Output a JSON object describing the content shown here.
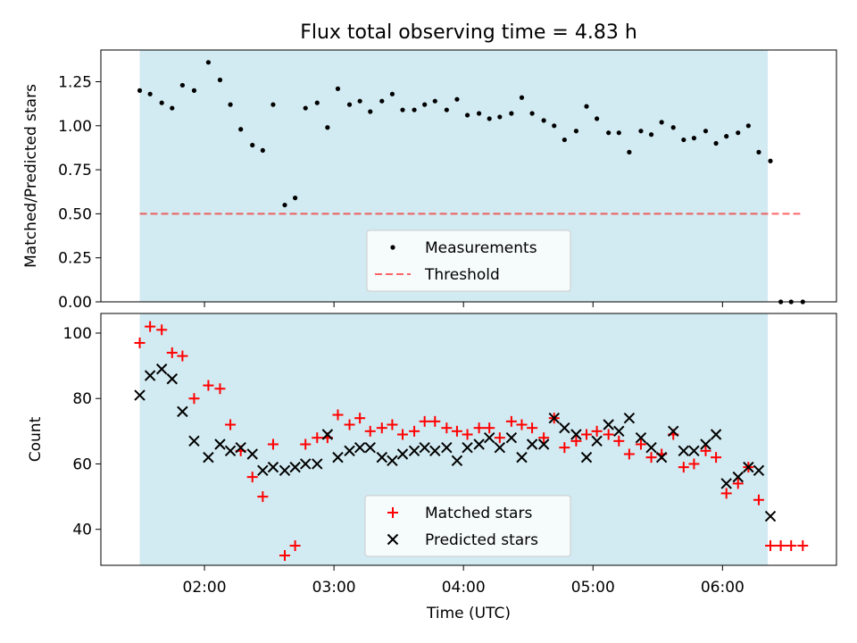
{
  "chart_data": [
    {
      "type": "scatter",
      "title": "Flux total observing time = 4.83 h",
      "ylabel": "Matched/Predicted stars",
      "xlabel": "",
      "ylim": [
        0,
        1.43
      ],
      "xlim_hours": [
        1.2,
        6.88
      ],
      "shaded_span_hours": [
        1.5,
        6.35
      ],
      "shade_color": "#add8e6",
      "yticks": [
        0.0,
        0.25,
        0.5,
        0.75,
        1.0,
        1.25
      ],
      "ytick_labels": [
        "0.00",
        "0.25",
        "0.50",
        "0.75",
        "1.00",
        "1.25"
      ],
      "threshold": {
        "value": 0.5,
        "x_range_hours": [
          1.5,
          6.6
        ],
        "color": "#ff0000"
      },
      "legend": {
        "placement": "lower center",
        "entries": [
          "Measurements",
          "Threshold"
        ]
      },
      "series": [
        {
          "name": "Measurements",
          "marker": "dot",
          "color": "#000000",
          "points": [
            [
              1.5,
              1.2
            ],
            [
              1.58,
              1.18
            ],
            [
              1.67,
              1.13
            ],
            [
              1.75,
              1.1
            ],
            [
              1.83,
              1.23
            ],
            [
              1.92,
              1.2
            ],
            [
              2.03,
              1.36
            ],
            [
              2.12,
              1.26
            ],
            [
              2.2,
              1.12
            ],
            [
              2.28,
              0.98
            ],
            [
              2.37,
              0.89
            ],
            [
              2.45,
              0.86
            ],
            [
              2.53,
              1.12
            ],
            [
              2.62,
              0.55
            ],
            [
              2.7,
              0.59
            ],
            [
              2.78,
              1.1
            ],
            [
              2.87,
              1.13
            ],
            [
              2.95,
              0.99
            ],
            [
              3.03,
              1.21
            ],
            [
              3.12,
              1.12
            ],
            [
              3.2,
              1.14
            ],
            [
              3.28,
              1.08
            ],
            [
              3.37,
              1.14
            ],
            [
              3.45,
              1.18
            ],
            [
              3.53,
              1.09
            ],
            [
              3.62,
              1.09
            ],
            [
              3.7,
              1.12
            ],
            [
              3.78,
              1.14
            ],
            [
              3.87,
              1.09
            ],
            [
              3.95,
              1.15
            ],
            [
              4.03,
              1.06
            ],
            [
              4.12,
              1.07
            ],
            [
              4.2,
              1.04
            ],
            [
              4.28,
              1.05
            ],
            [
              4.37,
              1.07
            ],
            [
              4.45,
              1.16
            ],
            [
              4.53,
              1.07
            ],
            [
              4.62,
              1.03
            ],
            [
              4.7,
              1.0
            ],
            [
              4.78,
              0.92
            ],
            [
              4.87,
              0.97
            ],
            [
              4.95,
              1.11
            ],
            [
              5.03,
              1.04
            ],
            [
              5.12,
              0.96
            ],
            [
              5.2,
              0.96
            ],
            [
              5.28,
              0.85
            ],
            [
              5.37,
              0.97
            ],
            [
              5.45,
              0.95
            ],
            [
              5.53,
              1.02
            ],
            [
              5.62,
              0.99
            ],
            [
              5.7,
              0.92
            ],
            [
              5.78,
              0.93
            ],
            [
              5.87,
              0.97
            ],
            [
              5.95,
              0.9
            ],
            [
              6.03,
              0.94
            ],
            [
              6.12,
              0.96
            ],
            [
              6.2,
              1.0
            ],
            [
              6.28,
              0.85
            ],
            [
              6.37,
              0.8
            ],
            [
              6.45,
              0.0
            ],
            [
              6.53,
              0.0
            ],
            [
              6.62,
              0.0
            ]
          ]
        }
      ]
    },
    {
      "type": "scatter",
      "title": "",
      "xlabel": "Time (UTC)",
      "ylabel": "Count",
      "ylim": [
        29,
        106
      ],
      "xlim_hours": [
        1.2,
        6.88
      ],
      "shaded_span_hours": [
        1.5,
        6.35
      ],
      "shade_color": "#add8e6",
      "yticks": [
        40,
        60,
        80,
        100
      ],
      "ytick_labels": [
        "40",
        "60",
        "80",
        "100"
      ],
      "xticks_hours": [
        2,
        3,
        4,
        5,
        6
      ],
      "xtick_labels": [
        "02:00",
        "03:00",
        "04:00",
        "05:00",
        "06:00"
      ],
      "legend": {
        "placement": "lower center",
        "entries": [
          "Matched stars",
          "Predicted stars"
        ]
      },
      "series": [
        {
          "name": "Matched stars",
          "marker": "plus",
          "color": "#ff0000",
          "points": [
            [
              1.5,
              97
            ],
            [
              1.58,
              102
            ],
            [
              1.67,
              101
            ],
            [
              1.75,
              94
            ],
            [
              1.83,
              93
            ],
            [
              1.92,
              80
            ],
            [
              2.03,
              84
            ],
            [
              2.12,
              83
            ],
            [
              2.2,
              72
            ],
            [
              2.28,
              64
            ],
            [
              2.37,
              56
            ],
            [
              2.45,
              50
            ],
            [
              2.53,
              66
            ],
            [
              2.62,
              32
            ],
            [
              2.7,
              35
            ],
            [
              2.78,
              66
            ],
            [
              2.87,
              68
            ],
            [
              2.95,
              68
            ],
            [
              3.03,
              75
            ],
            [
              3.12,
              72
            ],
            [
              3.2,
              74
            ],
            [
              3.28,
              70
            ],
            [
              3.37,
              71
            ],
            [
              3.45,
              72
            ],
            [
              3.53,
              69
            ],
            [
              3.62,
              70
            ],
            [
              3.7,
              73
            ],
            [
              3.78,
              73
            ],
            [
              3.87,
              71
            ],
            [
              3.95,
              70
            ],
            [
              4.03,
              69
            ],
            [
              4.12,
              71
            ],
            [
              4.2,
              71
            ],
            [
              4.28,
              68
            ],
            [
              4.37,
              73
            ],
            [
              4.45,
              72
            ],
            [
              4.53,
              71
            ],
            [
              4.62,
              68
            ],
            [
              4.7,
              74
            ],
            [
              4.78,
              65
            ],
            [
              4.87,
              67
            ],
            [
              4.95,
              69
            ],
            [
              5.03,
              70
            ],
            [
              5.12,
              69
            ],
            [
              5.2,
              67
            ],
            [
              5.28,
              63
            ],
            [
              5.37,
              66
            ],
            [
              5.45,
              62
            ],
            [
              5.53,
              63
            ],
            [
              5.62,
              69
            ],
            [
              5.7,
              59
            ],
            [
              5.78,
              60
            ],
            [
              5.87,
              64
            ],
            [
              5.95,
              62
            ],
            [
              6.03,
              51
            ],
            [
              6.12,
              54
            ],
            [
              6.2,
              59
            ],
            [
              6.28,
              49
            ],
            [
              6.37,
              35
            ],
            [
              6.45,
              35
            ],
            [
              6.53,
              35
            ],
            [
              6.62,
              35
            ]
          ]
        },
        {
          "name": "Predicted stars",
          "marker": "x",
          "color": "#000000",
          "points": [
            [
              1.5,
              81
            ],
            [
              1.58,
              87
            ],
            [
              1.67,
              89
            ],
            [
              1.75,
              86
            ],
            [
              1.83,
              76
            ],
            [
              1.92,
              67
            ],
            [
              2.03,
              62
            ],
            [
              2.12,
              66
            ],
            [
              2.2,
              64
            ],
            [
              2.28,
              65
            ],
            [
              2.37,
              63
            ],
            [
              2.45,
              58
            ],
            [
              2.53,
              59
            ],
            [
              2.62,
              58
            ],
            [
              2.7,
              59
            ],
            [
              2.78,
              60
            ],
            [
              2.87,
              60
            ],
            [
              2.95,
              69
            ],
            [
              3.03,
              62
            ],
            [
              3.12,
              64
            ],
            [
              3.2,
              65
            ],
            [
              3.28,
              65
            ],
            [
              3.37,
              62
            ],
            [
              3.45,
              61
            ],
            [
              3.53,
              63
            ],
            [
              3.62,
              64
            ],
            [
              3.7,
              65
            ],
            [
              3.78,
              64
            ],
            [
              3.87,
              65
            ],
            [
              3.95,
              61
            ],
            [
              4.03,
              65
            ],
            [
              4.12,
              66
            ],
            [
              4.2,
              68
            ],
            [
              4.28,
              65
            ],
            [
              4.37,
              68
            ],
            [
              4.45,
              62
            ],
            [
              4.53,
              66
            ],
            [
              4.62,
              66
            ],
            [
              4.7,
              74
            ],
            [
              4.78,
              71
            ],
            [
              4.87,
              69
            ],
            [
              4.95,
              62
            ],
            [
              5.03,
              67
            ],
            [
              5.12,
              72
            ],
            [
              5.2,
              70
            ],
            [
              5.28,
              74
            ],
            [
              5.37,
              68
            ],
            [
              5.45,
              65
            ],
            [
              5.53,
              62
            ],
            [
              5.62,
              70
            ],
            [
              5.7,
              64
            ],
            [
              5.78,
              64
            ],
            [
              5.87,
              66
            ],
            [
              5.95,
              69
            ],
            [
              6.03,
              54
            ],
            [
              6.12,
              56
            ],
            [
              6.2,
              59
            ],
            [
              6.28,
              58
            ],
            [
              6.37,
              44
            ]
          ]
        }
      ]
    }
  ]
}
